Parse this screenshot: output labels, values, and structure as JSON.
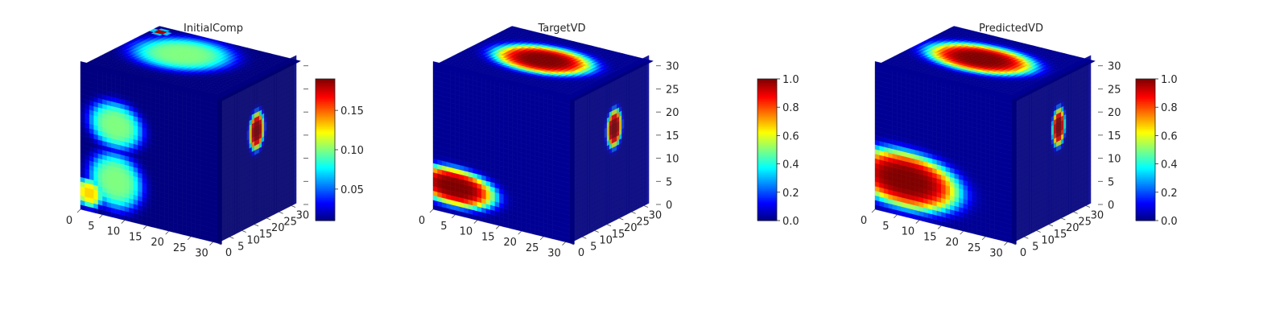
{
  "chart_data": [
    {
      "type": "voxel3d",
      "title": "InitialComp",
      "axes": {
        "x": {
          "range": [
            0,
            31
          ],
          "ticks": [
            0,
            5,
            10,
            15,
            20,
            25,
            30
          ]
        },
        "y": {
          "range": [
            0,
            31
          ],
          "ticks": [
            0,
            5,
            10,
            15,
            20,
            25,
            30
          ]
        },
        "z": {
          "range": [
            0,
            31
          ],
          "ticks": [],
          "note": "z tick marks shown, labels hidden by colorbar"
        }
      },
      "colorbar": {
        "colormap": "jet",
        "range": [
          0.01,
          0.19
        ],
        "ticks": [
          0.05,
          0.1,
          0.15
        ],
        "tick_labels": [
          "0.05",
          "0.10",
          "0.15"
        ]
      },
      "field": {
        "background": 0.01,
        "front_blobs": [
          {
            "cx": 8,
            "cz": 20,
            "rx": 6,
            "rz": 5,
            "value": 0.1
          },
          {
            "cx": 8,
            "cz": 8,
            "rx": 6,
            "rz": 6,
            "value": 0.1
          },
          {
            "cx": 2,
            "cz": 4,
            "rx": 3,
            "rz": 3,
            "value": 0.13
          }
        ],
        "top_blobs": [
          {
            "cx": 12,
            "cy": 20,
            "rx": 10,
            "ry": 10,
            "value": 0.1
          },
          {
            "cx": 2,
            "cy": 29,
            "rx": 1.5,
            "ry": 1.5,
            "value": 0.19
          }
        ],
        "side_blobs": [
          {
            "cy": 16,
            "cz": 20,
            "ry": 3,
            "rz": 4,
            "value": 0.19
          }
        ]
      }
    },
    {
      "type": "voxel3d",
      "title": "TargetVD",
      "axes": {
        "x": {
          "range": [
            0,
            31
          ],
          "ticks": [
            0,
            5,
            10,
            15,
            20,
            25,
            30
          ]
        },
        "y": {
          "range": [
            0,
            31
          ],
          "ticks": [
            0,
            5,
            10,
            15,
            20,
            25,
            30
          ]
        },
        "z": {
          "range": [
            0,
            31
          ],
          "ticks": [
            0,
            5,
            10,
            15,
            20,
            25,
            30
          ]
        }
      },
      "colorbar": {
        "colormap": "jet",
        "range": [
          0.0,
          1.0
        ],
        "ticks": [
          0.0,
          0.2,
          0.4,
          0.6,
          0.8,
          1.0
        ],
        "tick_labels": [
          "0.0",
          "0.2",
          "0.4",
          "0.6",
          "0.8",
          "1.0"
        ]
      },
      "field": {
        "background": 0.02,
        "front_blobs": [
          {
            "cx": 5,
            "cz": 6,
            "rx": 9,
            "rz": 4,
            "value": 1.0
          }
        ],
        "top_blobs": [
          {
            "cx": 15,
            "cy": 18,
            "rx": 10,
            "ry": 8,
            "value": 1.0
          }
        ],
        "side_blobs": [
          {
            "cy": 18,
            "cz": 20,
            "ry": 3,
            "rz": 4,
            "value": 1.0
          }
        ]
      }
    },
    {
      "type": "voxel3d",
      "title": "PredictedVD",
      "axes": {
        "x": {
          "range": [
            0,
            31
          ],
          "ticks": [
            0,
            5,
            10,
            15,
            20,
            25,
            30
          ]
        },
        "y": {
          "range": [
            0,
            31
          ],
          "ticks": [
            0,
            5,
            10,
            15,
            20,
            25,
            30
          ]
        },
        "z": {
          "range": [
            0,
            31
          ],
          "ticks": [
            0,
            5,
            10,
            15,
            20,
            25,
            30
          ]
        }
      },
      "colorbar": {
        "colormap": "jet",
        "range": [
          0.0,
          1.0
        ],
        "ticks": [
          0.0,
          0.2,
          0.4,
          0.6,
          0.8,
          1.0
        ],
        "tick_labels": [
          "0.0",
          "0.2",
          "0.4",
          "0.6",
          "0.8",
          "1.0"
        ]
      },
      "field": {
        "background": 0.02,
        "front_blobs": [
          {
            "cx": 7,
            "cz": 8,
            "rx": 12,
            "rz": 6,
            "value": 1.0
          }
        ],
        "top_blobs": [
          {
            "cx": 14,
            "cy": 18,
            "rx": 11,
            "ry": 8,
            "value": 1.0
          }
        ],
        "side_blobs": [
          {
            "cy": 19,
            "cz": 20,
            "ry": 2.5,
            "rz": 4,
            "value": 1.0
          }
        ]
      }
    }
  ]
}
